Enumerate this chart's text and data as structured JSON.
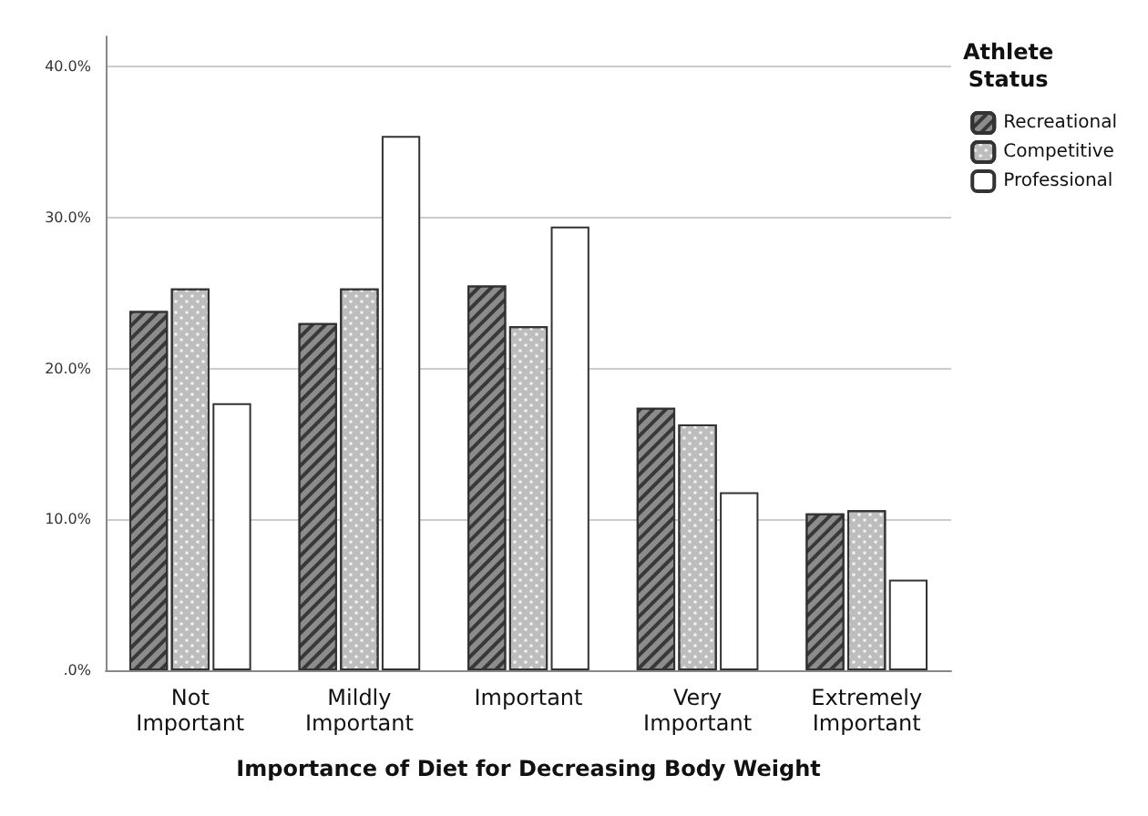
{
  "chart_data": {
    "type": "bar",
    "xlabel": "Importance of Diet for Decreasing Body Weight",
    "legend_title": "Athlete Status",
    "categories": [
      "Not\nImportant",
      "Mildly\nImportant",
      "Important",
      "Very\nImportant",
      "Extremely\nImportant"
    ],
    "series": [
      {
        "name": "Recreational",
        "color": "#8c8c8c",
        "values": [
          23.8,
          23.0,
          25.5,
          17.4,
          10.4
        ]
      },
      {
        "name": "Competitive",
        "color": "#bdbdbd",
        "values": [
          25.3,
          25.3,
          22.8,
          16.3,
          10.6
        ]
      },
      {
        "name": "Professional",
        "color": "#ffffff",
        "values": [
          17.7,
          35.4,
          29.4,
          11.8,
          6.0
        ]
      }
    ],
    "ylim": [
      0,
      42
    ],
    "yticks": [
      {
        "value": 0,
        "label": ".0%"
      },
      {
        "value": 10,
        "label": "10.0%"
      },
      {
        "value": 20,
        "label": "20.0%"
      },
      {
        "value": 30,
        "label": "30.0%"
      },
      {
        "value": 40,
        "label": "40.0%"
      }
    ],
    "grid": "y",
    "legend": "top right"
  }
}
